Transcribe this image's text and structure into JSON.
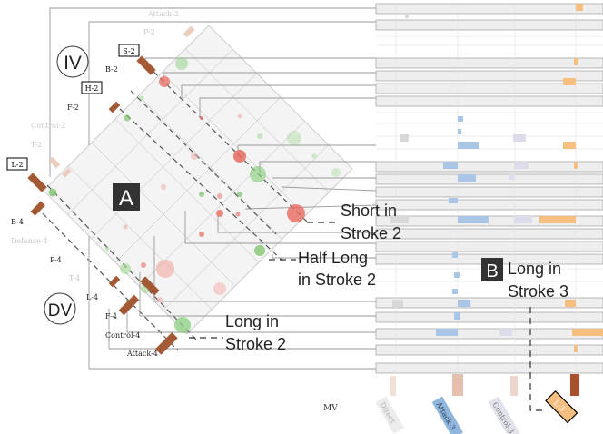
{
  "roman_labels": {
    "top": "IV",
    "bottom": "DV"
  },
  "panel_labels": {
    "a": "A",
    "b": "B"
  },
  "left_labels": {
    "attack_2": "Attack-2",
    "p_2": "P-2",
    "s_2": "S-2",
    "b_2": "B-2",
    "h_2": "H-2",
    "f_2": "F-2",
    "control_2": "Control-2",
    "t_2": "T-2",
    "l_2": "L-2",
    "b_4": "B-4",
    "defense_4": "Defense-4",
    "p_4": "P-4",
    "t_4": "T-4",
    "l_4": "L-4",
    "f_4": "F-4",
    "control_4": "Control-4",
    "attack_4": "Attack-4"
  },
  "annotations": {
    "short_1": "Short in",
    "short_2": "Stroke 2",
    "half_1": "Half Long",
    "half_2": "in Stroke 2",
    "long2_1": "Long in",
    "long2_2": "Stroke 2",
    "long3_1": "Long in",
    "long3_2": "Stroke 3"
  },
  "bottom_axis": {
    "mv": "MV",
    "direct": "Direct",
    "attack_3": "Attack-3",
    "control_3": "Control-3",
    "l_3": "L-3"
  },
  "colors": {
    "brown": "#a0522d",
    "red": "#e8645a",
    "green": "#7cc46a",
    "blue": "#8cb4dc",
    "orange": "#f4b266",
    "pink": "#e8bfae",
    "row": "#efefef"
  }
}
